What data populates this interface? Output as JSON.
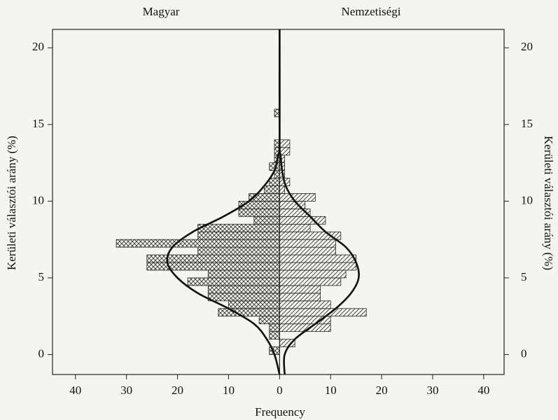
{
  "chart_data": {
    "type": "histogram",
    "orientation": "horizontal",
    "xlabel": "Frequency",
    "ylabel": "Kerületi választói arány (%)",
    "y2label": "Kerületi választói arány (%)",
    "xlim": [
      -44.5,
      44
    ],
    "xticks": [
      {
        "value": -40,
        "label": "40"
      },
      {
        "value": -30,
        "label": "30"
      },
      {
        "value": -20,
        "label": "20"
      },
      {
        "value": -10,
        "label": "10"
      },
      0,
      10,
      20,
      30,
      40
    ],
    "ylim": [
      -1.3,
      21.2
    ],
    "yticks": [
      0,
      5,
      10,
      15,
      20
    ],
    "y2ticks": [
      0,
      5,
      10,
      15,
      20
    ],
    "bins": [
      0,
      0.5,
      1,
      1.5,
      2,
      2.5,
      3,
      3.5,
      4,
      4.5,
      5,
      5.5,
      6,
      6.5,
      7,
      7.5,
      8,
      8.5,
      9,
      9.5,
      10,
      10.5,
      11,
      11.5,
      12,
      12.5,
      13,
      13.5,
      14,
      14.5,
      15,
      15.5,
      16
    ],
    "series": [
      {
        "name": "Magyar",
        "color": "#222222",
        "pattern": "crosshatch",
        "values": [
          -2,
          0,
          -2,
          -2,
          -4,
          -12,
          -10,
          -14,
          -14,
          -18,
          -14,
          -26,
          -26,
          -16,
          -32,
          -16,
          -16,
          -5,
          -8,
          -8,
          -6,
          -3,
          -2,
          -1,
          -2,
          -1,
          -1,
          -1,
          0,
          0,
          0,
          -1
        ],
        "curve": {
          "y": [
            -1.3,
            0,
            1,
            2,
            3,
            4,
            5,
            6,
            7,
            8,
            9,
            10,
            11,
            12,
            13,
            14,
            21.2
          ],
          "x": [
            0,
            -1,
            -2.5,
            -5,
            -10,
            -16,
            -20,
            -22,
            -21,
            -17,
            -11,
            -6,
            -3,
            -1,
            -0.3,
            0,
            0
          ]
        }
      },
      {
        "name": "Nemzetiségi",
        "color": "#222222",
        "pattern": "diagonal",
        "values": [
          0,
          3,
          0,
          10,
          10,
          17,
          10,
          8,
          8,
          12,
          13,
          15,
          15,
          11,
          11,
          12,
          6,
          9,
          6,
          5,
          7,
          1,
          2,
          1,
          1,
          1,
          2,
          2,
          0,
          0,
          0,
          0
        ],
        "curve": {
          "y": [
            -1.3,
            0,
            1,
            2,
            3,
            4,
            5,
            6,
            7,
            8,
            9,
            10,
            11,
            12,
            13,
            14,
            21.2
          ],
          "x": [
            1,
            1,
            3,
            7,
            11,
            14,
            15.5,
            15,
            13,
            9,
            6,
            3,
            1.2,
            0.5,
            0.2,
            0,
            0
          ]
        }
      }
    ]
  }
}
